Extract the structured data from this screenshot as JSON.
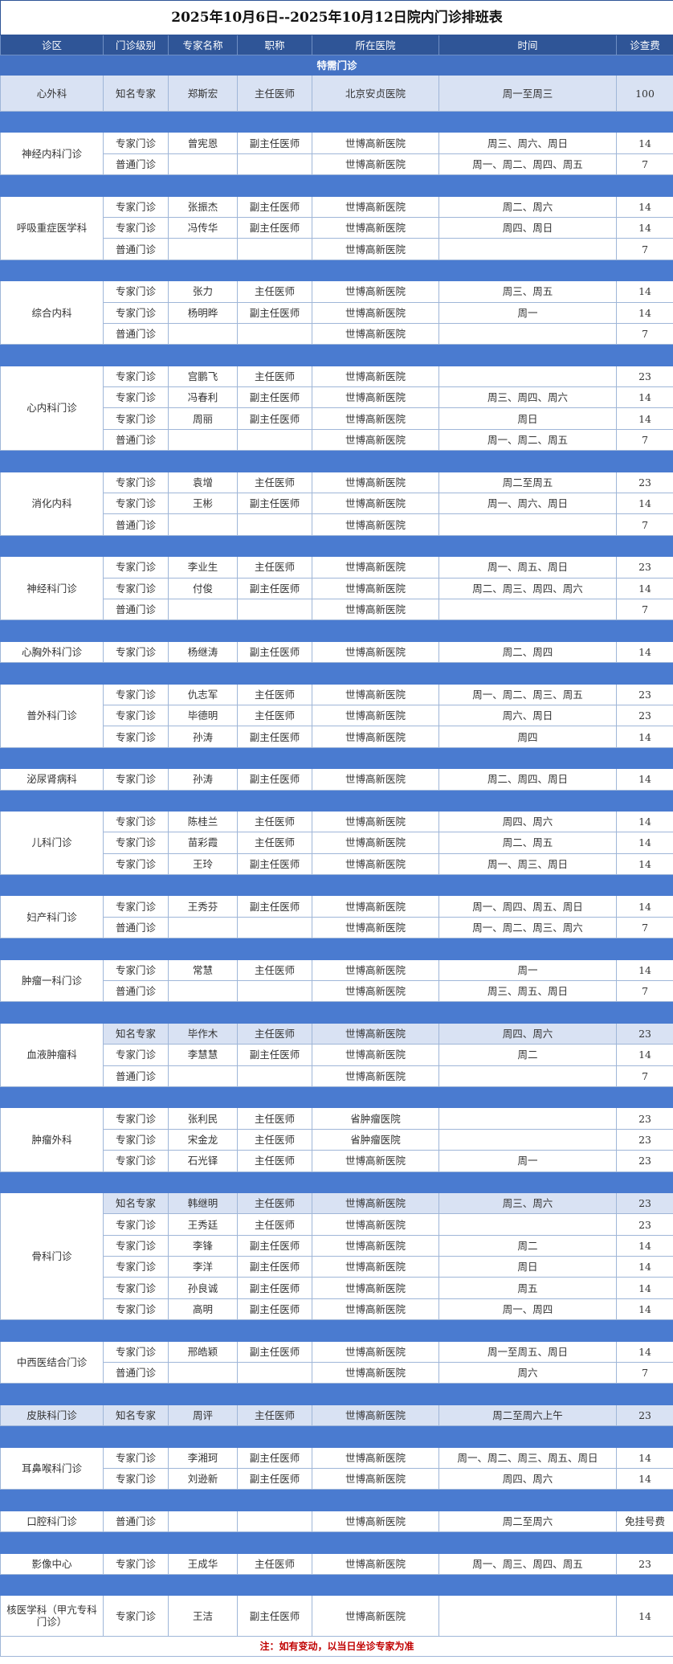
{
  "title": "2025年10月6日--2025年10月12日院内门诊排班表",
  "header": [
    "诊区",
    "门诊级别",
    "专家名称",
    "职称",
    "所在医院",
    "时间",
    "诊查费"
  ],
  "special_section": "特需门诊",
  "departments": [
    {
      "name": "心外科",
      "highlight_dept": true,
      "highlight_rows": [
        0
      ],
      "rows": [
        [
          "知名专家",
          "郑斯宏",
          "主任医师",
          "北京安贞医院",
          "周一至周三",
          100
        ]
      ]
    },
    {
      "name": "神经内科门诊",
      "rows": [
        [
          "专家门诊",
          "曾宪恩",
          "副主任医师",
          "世博高新医院",
          "周三、周六、周日",
          14
        ],
        [
          "普通门诊",
          null,
          null,
          "世博高新医院",
          "周一、周二、周四、周五",
          7
        ]
      ]
    },
    {
      "name": "呼吸重症医学科",
      "rows": [
        [
          "专家门诊",
          "张振杰",
          "副主任医师",
          "世博高新医院",
          "周二、周六",
          14
        ],
        [
          "专家门诊",
          "冯传华",
          "副主任医师",
          "世博高新医院",
          "周四、周日",
          14
        ],
        [
          "普通门诊",
          null,
          null,
          "世博高新医院",
          null,
          7
        ]
      ]
    },
    {
      "name": "综合内科",
      "rows": [
        [
          "专家门诊",
          "张力",
          "主任医师",
          "世博高新医院",
          "周三、周五",
          14
        ],
        [
          "专家门诊",
          "杨明晔",
          "副主任医师",
          "世博高新医院",
          "周一",
          14
        ],
        [
          "普通门诊",
          null,
          null,
          "世博高新医院",
          null,
          7
        ]
      ]
    },
    {
      "name": "心内科门诊",
      "rows": [
        [
          "专家门诊",
          "宫鹏飞",
          "主任医师",
          "世博高新医院",
          null,
          23
        ],
        [
          "专家门诊",
          "冯春利",
          "副主任医师",
          "世博高新医院",
          "周三、周四、周六",
          14
        ],
        [
          "专家门诊",
          "周丽",
          "副主任医师",
          "世博高新医院",
          "周日",
          14
        ],
        [
          "普通门诊",
          null,
          null,
          "世博高新医院",
          "周一、周二、周五",
          7
        ]
      ]
    },
    {
      "name": "消化内科",
      "rows": [
        [
          "专家门诊",
          "袁增",
          "主任医师",
          "世博高新医院",
          "周二至周五",
          23
        ],
        [
          "专家门诊",
          "王彬",
          "副主任医师",
          "世博高新医院",
          "周一、周六、周日",
          14
        ],
        [
          "普通门诊",
          null,
          null,
          "世博高新医院",
          null,
          7
        ]
      ]
    },
    {
      "name": "神经科门诊",
      "rows": [
        [
          "专家门诊",
          "李业生",
          "主任医师",
          "世博高新医院",
          "周一、周五、周日",
          23
        ],
        [
          "专家门诊",
          "付俊",
          "副主任医师",
          "世博高新医院",
          "周二、周三、周四、周六",
          14
        ],
        [
          "普通门诊",
          null,
          null,
          "世博高新医院",
          null,
          7
        ]
      ]
    },
    {
      "name": "心胸外科门诊",
      "rows": [
        [
          "专家门诊",
          "杨继涛",
          "副主任医师",
          "世博高新医院",
          "周二、周四",
          14
        ]
      ]
    },
    {
      "name": "普外科门诊",
      "rows": [
        [
          "专家门诊",
          "仇志军",
          "主任医师",
          "世博高新医院",
          "周一、周二、周三、周五",
          23
        ],
        [
          "专家门诊",
          "毕德明",
          "主任医师",
          "世博高新医院",
          "周六、周日",
          23
        ],
        [
          "专家门诊",
          "孙涛",
          "副主任医师",
          "世博高新医院",
          "周四",
          14
        ]
      ]
    },
    {
      "name": "泌尿肾病科",
      "rows": [
        [
          "专家门诊",
          "孙涛",
          "副主任医师",
          "世博高新医院",
          "周二、周四、周日",
          14
        ]
      ]
    },
    {
      "name": "儿科门诊",
      "rows": [
        [
          "专家门诊",
          "陈桂兰",
          "主任医师",
          "世博高新医院",
          "周四、周六",
          14
        ],
        [
          "专家门诊",
          "苗彩霞",
          "主任医师",
          "世博高新医院",
          "周二、周五",
          14
        ],
        [
          "专家门诊",
          "王玲",
          "副主任医师",
          "世博高新医院",
          "周一、周三、周日",
          14
        ]
      ]
    },
    {
      "name": "妇产科门诊",
      "rows": [
        [
          "专家门诊",
          "王秀芬",
          "副主任医师",
          "世博高新医院",
          "周一、周四、周五、周日",
          14
        ],
        [
          "普通门诊",
          null,
          null,
          "世博高新医院",
          "周一、周二、周三、周六",
          7
        ]
      ]
    },
    {
      "name": "肿瘤一科门诊",
      "rows": [
        [
          "专家门诊",
          "常慧",
          "主任医师",
          "世博高新医院",
          "周一",
          14
        ],
        [
          "普通门诊",
          null,
          null,
          "世博高新医院",
          "周三、周五、周日",
          7
        ]
      ]
    },
    {
      "name": "血液肿瘤科",
      "highlight_rows": [
        0
      ],
      "rows": [
        [
          "知名专家",
          "毕作木",
          "主任医师",
          "世博高新医院",
          "周四、周六",
          23
        ],
        [
          "专家门诊",
          "李慧慧",
          "副主任医师",
          "世博高新医院",
          "周二",
          14
        ],
        [
          "普通门诊",
          null,
          null,
          "世博高新医院",
          null,
          7
        ]
      ]
    },
    {
      "name": "肿瘤外科",
      "rows": [
        [
          "专家门诊",
          "张利民",
          "主任医师",
          "省肿瘤医院",
          null,
          23
        ],
        [
          "专家门诊",
          "宋金龙",
          "主任医师",
          "省肿瘤医院",
          null,
          23
        ],
        [
          "专家门诊",
          "石光铎",
          "主任医师",
          "世博高新医院",
          "周一",
          23
        ]
      ]
    },
    {
      "name": "骨科门诊",
      "highlight_rows": [
        0
      ],
      "rows": [
        [
          "知名专家",
          "韩继明",
          "主任医师",
          "世博高新医院",
          "周三、周六",
          23
        ],
        [
          "专家门诊",
          "王秀廷",
          "主任医师",
          "世博高新医院",
          null,
          23
        ],
        [
          "专家门诊",
          "李锋",
          "副主任医师",
          "世博高新医院",
          "周二",
          14
        ],
        [
          "专家门诊",
          "李洋",
          "副主任医师",
          "世博高新医院",
          "周日",
          14
        ],
        [
          "专家门诊",
          "孙良诚",
          "副主任医师",
          "世博高新医院",
          "周五",
          14
        ],
        [
          "专家门诊",
          "高明",
          "副主任医师",
          "世博高新医院",
          "周一、周四",
          14
        ]
      ]
    },
    {
      "name": "中西医结合门诊",
      "rows": [
        [
          "专家门诊",
          "邢皓颖",
          "副主任医师",
          "世博高新医院",
          "周一至周五、周日",
          14
        ],
        [
          "普通门诊",
          null,
          null,
          "世博高新医院",
          "周六",
          7
        ]
      ]
    },
    {
      "name": "皮肤科门诊",
      "highlight_dept": true,
      "highlight_rows": [
        0
      ],
      "rows": [
        [
          "知名专家",
          "周评",
          "主任医师",
          "世博高新医院",
          "周二至周六上午",
          23
        ]
      ]
    },
    {
      "name": "耳鼻喉科门诊",
      "rows": [
        [
          "专家门诊",
          "李湘珂",
          "副主任医师",
          "世博高新医院",
          "周一、周二、周三、周五、周日",
          14
        ],
        [
          "专家门诊",
          "刘逊新",
          "副主任医师",
          "世博高新医院",
          "周四、周六",
          14
        ]
      ]
    },
    {
      "name": "口腔科门诊",
      "rows": [
        [
          "普通门诊",
          null,
          null,
          "世博高新医院",
          "周二至周六",
          "免挂号费"
        ]
      ]
    },
    {
      "name": "影像中心",
      "rows": [
        [
          "专家门诊",
          "王成华",
          "主任医师",
          "世博高新医院",
          "周一、周三、周四、周五",
          23
        ]
      ]
    },
    {
      "name": "核医学科（甲亢专科门诊）",
      "rows": [
        [
          "专家门诊",
          "王洁",
          "副主任医师",
          "世博高新医院",
          null,
          14
        ]
      ]
    }
  ],
  "note": "注：如有变动，以当日坐诊专家为准"
}
